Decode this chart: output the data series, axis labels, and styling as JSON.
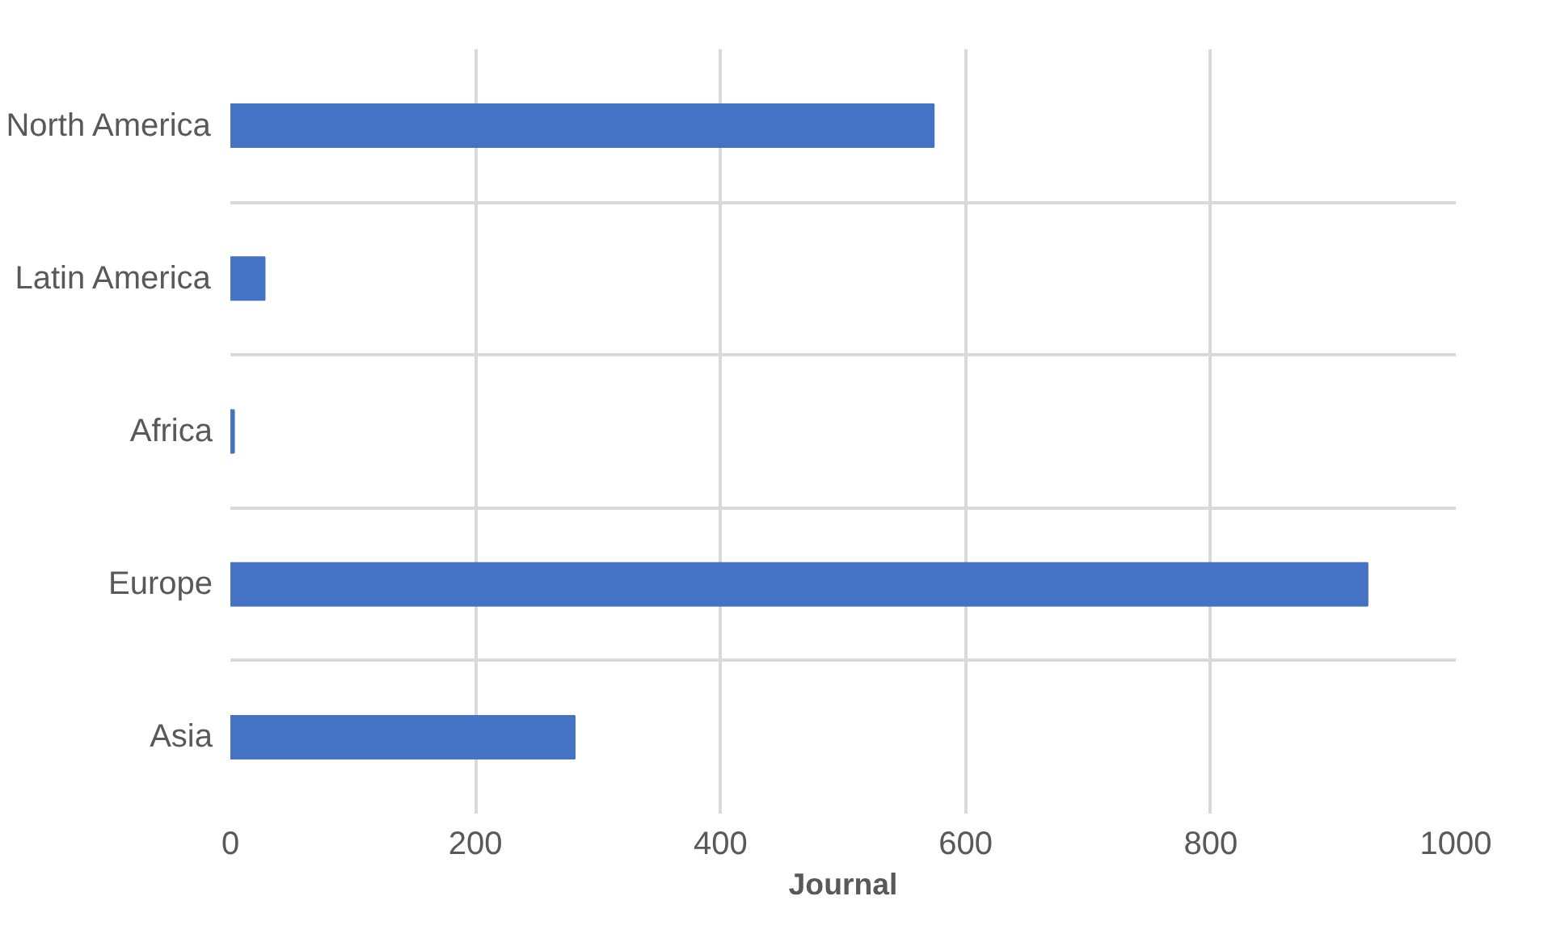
{
  "chart_data": {
    "type": "bar",
    "orientation": "horizontal",
    "xlabel": "Journal",
    "categories": [
      "North America",
      "Latin America",
      "Africa",
      "Europe",
      "Asia"
    ],
    "values": [
      574,
      28,
      3,
      928,
      281
    ],
    "color": "#4472c4",
    "xlim": [
      0,
      1000
    ],
    "xticks": [
      0,
      200,
      400,
      600,
      800,
      1000
    ],
    "grid": true
  }
}
